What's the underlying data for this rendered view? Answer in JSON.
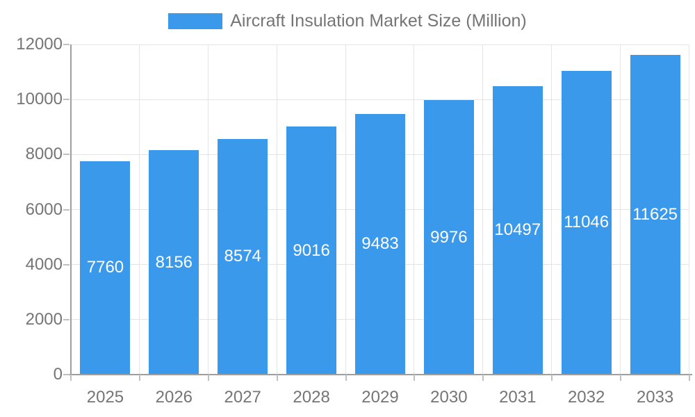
{
  "chart_data": {
    "type": "bar",
    "title": "Aircraft Insulation Market Size (Million)",
    "legend": {
      "position": "top",
      "entries": [
        "Aircraft Insulation Market Size (Million)"
      ]
    },
    "categories": [
      "2025",
      "2026",
      "2027",
      "2028",
      "2029",
      "2030",
      "2031",
      "2032",
      "2033"
    ],
    "series": [
      {
        "name": "Aircraft Insulation Market Size (Million)",
        "values": [
          7760,
          8156,
          8574,
          9016,
          9483,
          9976,
          10497,
          11046,
          11625
        ]
      }
    ],
    "value_labels_position": "inside-center",
    "xlabel": "",
    "ylabel": "",
    "ylim": [
      0,
      12000
    ],
    "yticks": [
      0,
      2000,
      4000,
      6000,
      8000,
      10000,
      12000
    ],
    "grid": true,
    "colors": {
      "bar": "#3B99EC",
      "grid": "#e4e4e4",
      "axis": "#9e9e9e",
      "tick": "#c0c0c0",
      "tick_label": "#757575",
      "legend_label": "#757575",
      "value_label": "#ffffff",
      "background": "#ffffff"
    }
  }
}
